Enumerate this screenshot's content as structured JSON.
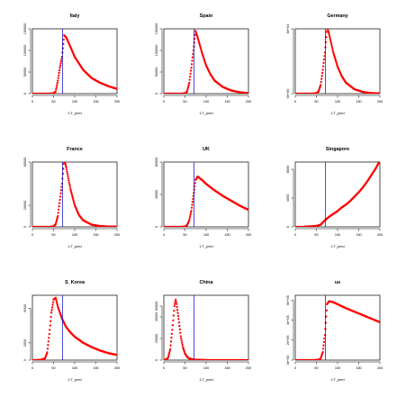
{
  "chart_data": [
    {
      "type": "scatter",
      "title": "Italy",
      "xlabel": "1:T_pred",
      "ylabel": "",
      "xlim": [
        0,
        200
      ],
      "xticks": [
        0,
        50,
        100,
        150,
        200
      ],
      "ylim": [
        0,
        150000
      ],
      "yticks": [
        0,
        50000,
        100000,
        150000
      ],
      "ytick_labels": [
        "0",
        "50000",
        "100000",
        "150000"
      ],
      "vline_x": 71,
      "series": [
        {
          "x": [
            1,
            10,
            20,
            30,
            40,
            50,
            55,
            60,
            65,
            70,
            75,
            80,
            90,
            100,
            120,
            140,
            160,
            180,
            200
          ],
          "values": [
            0,
            0,
            0,
            0,
            0,
            500,
            5000,
            30000,
            60000,
            85000,
            135000,
            130000,
            108000,
            85000,
            55000,
            36000,
            25000,
            17000,
            11000
          ]
        }
      ]
    },
    {
      "type": "scatter",
      "title": "Spain",
      "xlabel": "1:T_pred",
      "ylabel": "",
      "xlim": [
        0,
        200
      ],
      "xticks": [
        0,
        50,
        100,
        150,
        200
      ],
      "ylim": [
        0,
        150000
      ],
      "yticks": [
        0,
        50000,
        100000,
        150000
      ],
      "ytick_labels": [
        "0",
        "50000",
        "100000",
        "150000"
      ],
      "vline_x": 71,
      "series": [
        {
          "x": [
            1,
            10,
            20,
            30,
            40,
            50,
            55,
            60,
            65,
            70,
            75,
            80,
            90,
            100,
            110,
            120,
            140,
            160,
            180,
            200
          ],
          "values": [
            0,
            0,
            0,
            0,
            0,
            500,
            5000,
            25000,
            60000,
            100000,
            145000,
            130000,
            95000,
            65000,
            45000,
            30000,
            15000,
            7000,
            3000,
            1000
          ]
        }
      ]
    },
    {
      "type": "scatter",
      "title": "Germany",
      "xlabel": "1:T_pred",
      "ylabel": "",
      "xlim": [
        0,
        200
      ],
      "xticks": [
        0,
        50,
        100,
        150,
        200
      ],
      "ylim": [
        0,
        60000
      ],
      "yticks": [
        0,
        60000
      ],
      "ytick_labels": [
        "0e+00",
        "6e+04"
      ],
      "vline_x": 71,
      "series": [
        {
          "x": [
            1,
            10,
            20,
            30,
            40,
            50,
            55,
            60,
            65,
            70,
            75,
            80,
            90,
            100,
            110,
            120,
            140,
            160,
            180,
            200
          ],
          "values": [
            0,
            0,
            0,
            0,
            0,
            300,
            2000,
            8000,
            22000,
            38000,
            62000,
            55000,
            38000,
            25000,
            16000,
            10000,
            4000,
            1500,
            500,
            200
          ]
        }
      ]
    },
    {
      "type": "scatter",
      "title": "France",
      "xlabel": "1:T_pred",
      "ylabel": "",
      "xlim": [
        0,
        200
      ],
      "xticks": [
        0,
        50,
        100,
        150,
        200
      ],
      "ylim": [
        0,
        60000
      ],
      "yticks": [
        0,
        20000,
        60000
      ],
      "ytick_labels": [
        "0",
        "20000",
        "60000"
      ],
      "vline_x": 71,
      "series": [
        {
          "x": [
            1,
            10,
            20,
            30,
            40,
            50,
            55,
            60,
            65,
            70,
            75,
            80,
            90,
            100,
            110,
            120,
            140,
            160,
            180,
            200
          ],
          "values": [
            0,
            0,
            0,
            0,
            0,
            300,
            2500,
            10000,
            25000,
            40000,
            63000,
            55000,
            35000,
            20000,
            11000,
            6000,
            2000,
            700,
            300,
            100
          ]
        }
      ]
    },
    {
      "type": "scatter",
      "title": "UK",
      "xlabel": "1:T_pred",
      "ylabel": "",
      "xlim": [
        0,
        200
      ],
      "xticks": [
        0,
        50,
        100,
        150,
        200
      ],
      "ylim": [
        0,
        80000
      ],
      "yticks": [
        0,
        40000,
        80000
      ],
      "ytick_labels": [
        "0",
        "40000",
        "80000"
      ],
      "vline_x": 71,
      "series": [
        {
          "x": [
            1,
            10,
            20,
            30,
            40,
            50,
            55,
            60,
            65,
            70,
            75,
            80,
            90,
            100,
            120,
            140,
            160,
            180,
            200
          ],
          "values": [
            0,
            0,
            0,
            0,
            0,
            300,
            2000,
            8000,
            20000,
            38000,
            58000,
            62000,
            58000,
            53000,
            45000,
            38000,
            32000,
            26000,
            21000
          ]
        }
      ]
    },
    {
      "type": "scatter",
      "title": "Singapore",
      "xlabel": "1:T_pred",
      "ylabel": "",
      "xlim": [
        0,
        200
      ],
      "xticks": [
        0,
        50,
        100,
        150,
        200
      ],
      "ylim": [
        0,
        9000
      ],
      "yticks": [
        0,
        4000,
        8000
      ],
      "ytick_labels": [
        "0",
        "4000",
        "8000"
      ],
      "vline_x": 71,
      "series": [
        {
          "x": [
            1,
            10,
            20,
            30,
            40,
            50,
            60,
            70,
            80,
            90,
            100,
            110,
            120,
            130,
            140,
            150,
            160,
            170,
            180,
            190,
            200
          ],
          "values": [
            0,
            0,
            0,
            50,
            80,
            120,
            300,
            900,
            1400,
            1800,
            2200,
            2700,
            3100,
            3600,
            4200,
            4800,
            5500,
            6300,
            7200,
            8100,
            9200
          ]
        }
      ]
    },
    {
      "type": "scatter",
      "title": "S_Korea",
      "xlabel": "1:T_pred",
      "ylabel": "",
      "xlim": [
        0,
        200
      ],
      "xticks": [
        0,
        50,
        100,
        150,
        200
      ],
      "ylim": [
        0,
        7500
      ],
      "yticks": [
        0,
        2000,
        6000
      ],
      "ytick_labels": [
        "0",
        "2000",
        "6000"
      ],
      "vline_x": 71,
      "series": [
        {
          "x": [
            1,
            10,
            20,
            30,
            35,
            40,
            45,
            50,
            55,
            60,
            65,
            70,
            80,
            90,
            100,
            120,
            140,
            160,
            180,
            200
          ],
          "values": [
            0,
            0,
            20,
            200,
            900,
            3000,
            5500,
            7000,
            7200,
            6200,
            5500,
            4800,
            3800,
            3200,
            2700,
            2000,
            1500,
            1100,
            800,
            600
          ]
        }
      ]
    },
    {
      "type": "scatter",
      "title": "China",
      "xlabel": "1:T_pred",
      "ylabel": "",
      "xlim": [
        0,
        200
      ],
      "xticks": [
        0,
        50,
        100,
        150,
        200
      ],
      "ylim": [
        0,
        60000
      ],
      "yticks": [
        0,
        20000,
        40000,
        50000
      ],
      "ytick_labels": [
        "0",
        "20000",
        "40000",
        "50000"
      ],
      "vline_x": 71,
      "series": [
        {
          "x": [
            1,
            5,
            10,
            15,
            20,
            25,
            28,
            30,
            35,
            40,
            45,
            50,
            55,
            60,
            70,
            80,
            100,
            120,
            150,
            200
          ],
          "values": [
            0,
            500,
            2000,
            10000,
            28000,
            50000,
            56000,
            52000,
            38000,
            22000,
            12000,
            6000,
            3000,
            1500,
            500,
            200,
            0,
            0,
            0,
            0
          ]
        }
      ]
    },
    {
      "type": "scatter",
      "title": "us",
      "xlabel": "1:T_pred",
      "ylabel": "",
      "xlim": [
        0,
        200
      ],
      "xticks": [
        0,
        50,
        100,
        150,
        200
      ],
      "ylim": [
        0,
        650000
      ],
      "yticks": [
        0,
        200000,
        400000,
        600000
      ],
      "ytick_labels": [
        "0e+00",
        "2e+05",
        "4e+05",
        "6e+05"
      ],
      "vline_x": 71,
      "series": [
        {
          "x": [
            1,
            10,
            20,
            30,
            40,
            50,
            55,
            60,
            65,
            70,
            75,
            80,
            90,
            100,
            120,
            140,
            160,
            180,
            200
          ],
          "values": [
            0,
            0,
            0,
            0,
            0,
            500,
            3000,
            15000,
            80000,
            250000,
            560000,
            590000,
            580000,
            560000,
            520000,
            485000,
            450000,
            415000,
            380000
          ]
        }
      ]
    }
  ],
  "colors": {
    "points": "#ff0000",
    "vline": "#0000cc",
    "axes": "#000000"
  }
}
